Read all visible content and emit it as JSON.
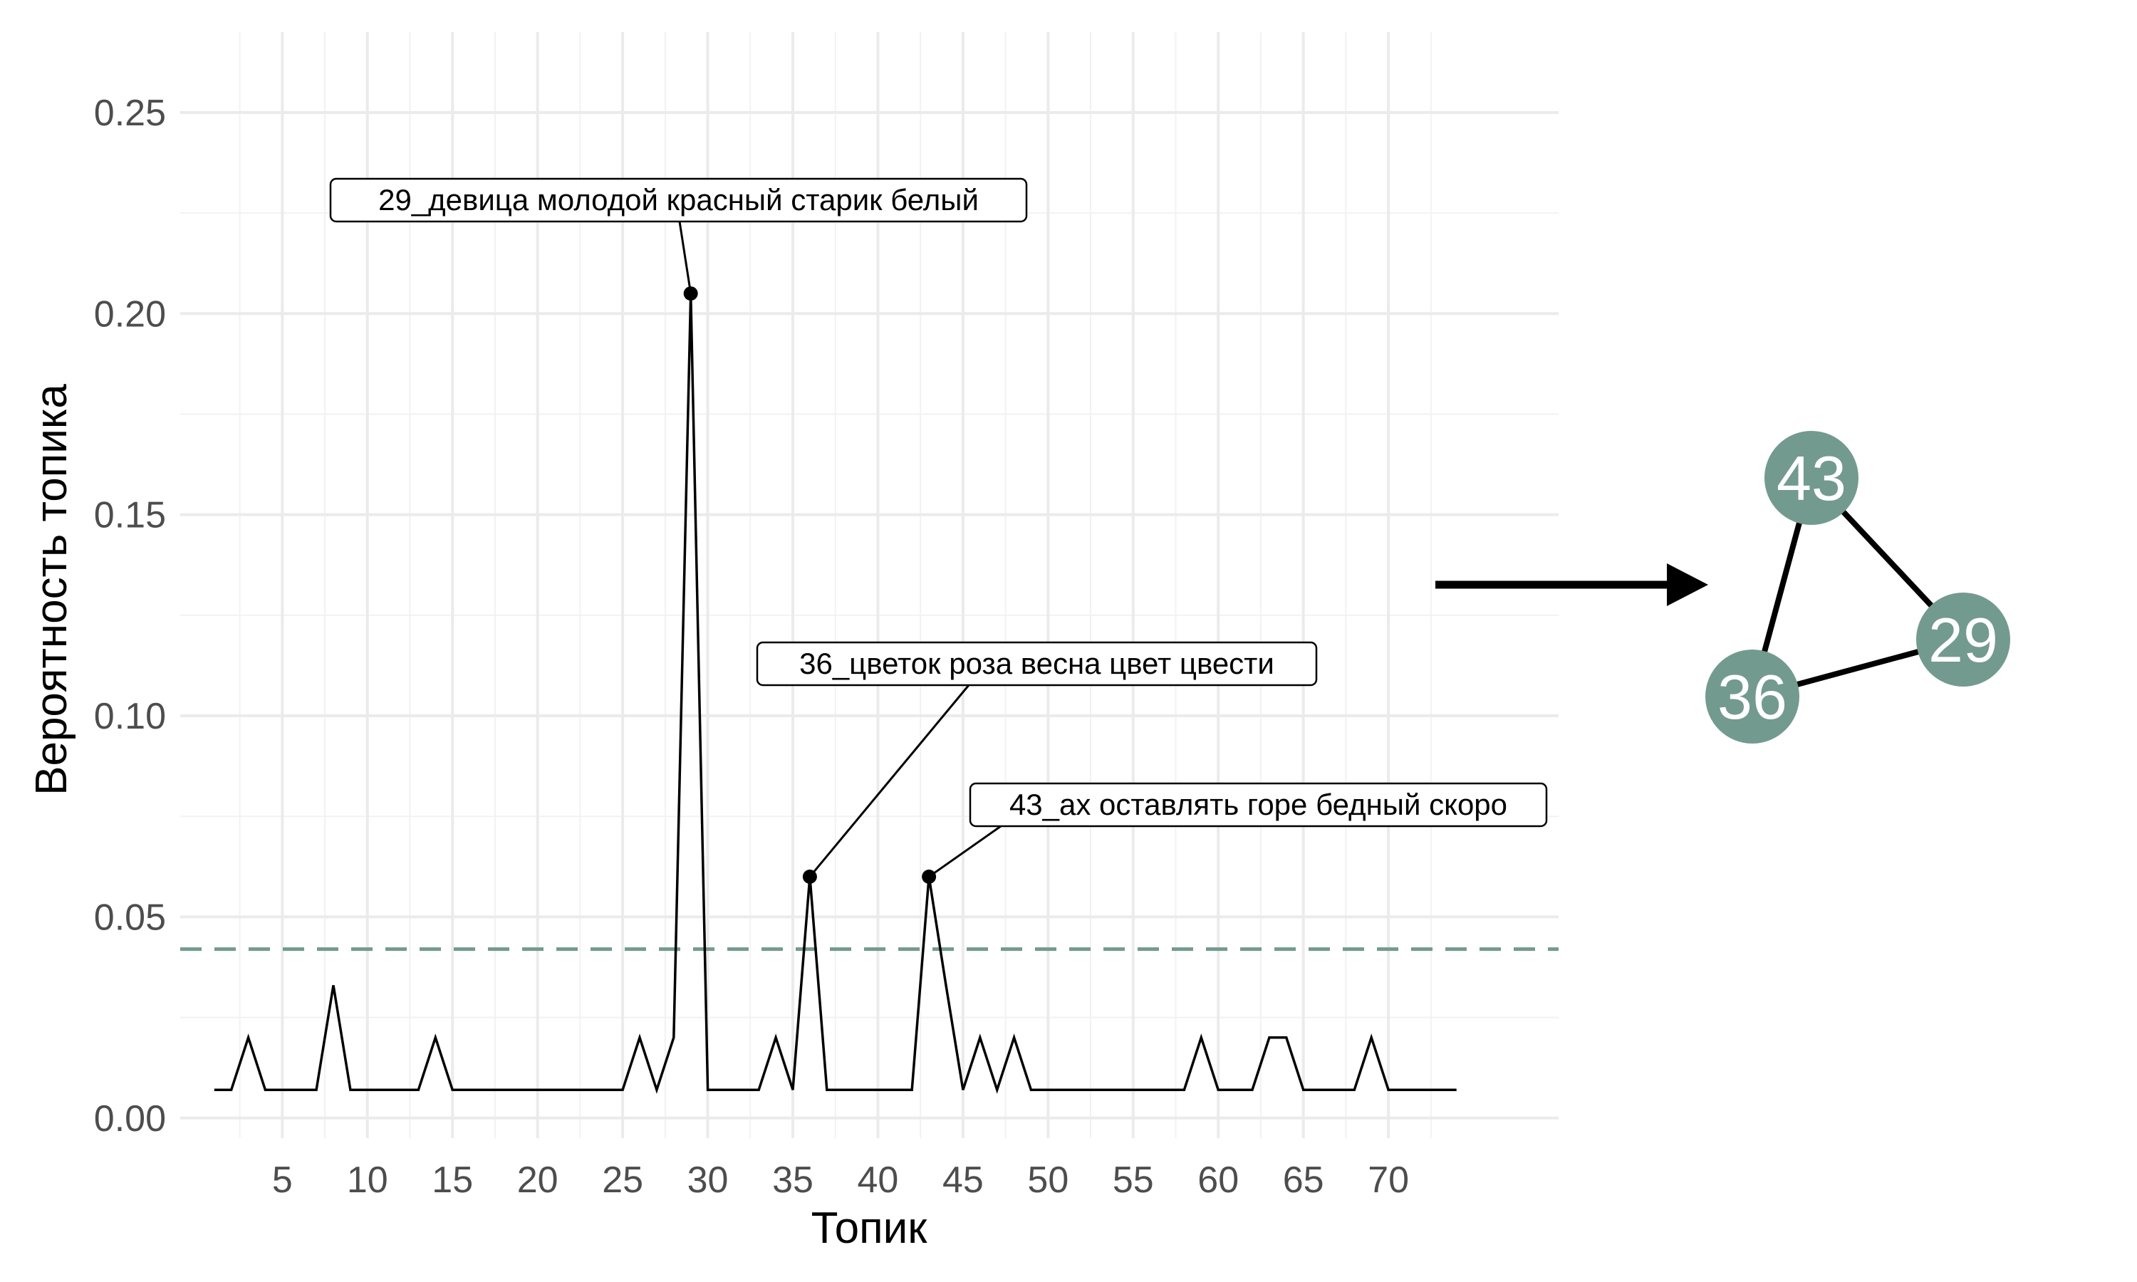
{
  "chart_data": {
    "type": "line",
    "xlabel": "Топик",
    "ylabel": "Вероятность топика",
    "xlim": [
      -1,
      80
    ],
    "ylim": [
      -0.005,
      0.27
    ],
    "x_ticks": [
      5,
      10,
      15,
      20,
      25,
      30,
      35,
      40,
      45,
      50,
      55,
      60,
      65,
      70
    ],
    "x_tick_labels": [
      "5",
      "10",
      "15",
      "20",
      "25",
      "30",
      "35",
      "40",
      "45",
      "50",
      "55",
      "60",
      "65",
      "70"
    ],
    "y_ticks": [
      0.0,
      0.05,
      0.1,
      0.15,
      0.2,
      0.25
    ],
    "y_tick_labels": [
      "0.00",
      "0.05",
      "0.10",
      "0.15",
      "0.20",
      "0.25"
    ],
    "grid": true,
    "threshold": 0.042,
    "threshold_color": "#739a8f",
    "line_color": "#000000",
    "series": [
      {
        "x": [
          1,
          2,
          3,
          4,
          5,
          6,
          7,
          8,
          9,
          10,
          11,
          12,
          13,
          14,
          15,
          16,
          17,
          18,
          19,
          20,
          21,
          22,
          23,
          24,
          25,
          26,
          27,
          28,
          29,
          30,
          31,
          32,
          33,
          34,
          35,
          36,
          37,
          38,
          39,
          40,
          41,
          42,
          43,
          44,
          45,
          46,
          47,
          48,
          49,
          50,
          51,
          52,
          53,
          54,
          55,
          56,
          57,
          58,
          59,
          60,
          61,
          62,
          63,
          64,
          65,
          66,
          67,
          68,
          69,
          70,
          71,
          72,
          73,
          74
        ],
        "values": [
          0.007,
          0.007,
          0.02,
          0.007,
          0.007,
          0.007,
          0.007,
          0.033,
          0.007,
          0.007,
          0.007,
          0.007,
          0.007,
          0.02,
          0.007,
          0.007,
          0.007,
          0.007,
          0.007,
          0.007,
          0.007,
          0.007,
          0.007,
          0.007,
          0.007,
          0.02,
          0.007,
          0.02,
          0.205,
          0.007,
          0.007,
          0.007,
          0.007,
          0.02,
          0.007,
          0.06,
          0.007,
          0.007,
          0.007,
          0.007,
          0.007,
          0.007,
          0.06,
          0.033,
          0.007,
          0.02,
          0.007,
          0.02,
          0.007,
          0.007,
          0.007,
          0.007,
          0.007,
          0.007,
          0.007,
          0.007,
          0.007,
          0.007,
          0.02,
          0.007,
          0.007,
          0.007,
          0.02,
          0.02,
          0.007,
          0.007,
          0.007,
          0.007,
          0.02,
          0.007,
          0.007,
          0.007,
          0.007,
          0.007
        ]
      }
    ],
    "highlighted_points": [
      {
        "x": 29,
        "y": 0.205,
        "label": "29_девица молодой красный старик белый"
      },
      {
        "x": 36,
        "y": 0.06,
        "label": "36_цветок роза весна цвет цвести"
      },
      {
        "x": 43,
        "y": 0.06,
        "label": "43_ах оставлять горе бедный скоро"
      }
    ]
  },
  "network": {
    "node_color": "#739a8f",
    "nodes": [
      "43",
      "29",
      "36"
    ],
    "edges": [
      [
        "43",
        "29"
      ],
      [
        "29",
        "36"
      ],
      [
        "36",
        "43"
      ]
    ]
  }
}
